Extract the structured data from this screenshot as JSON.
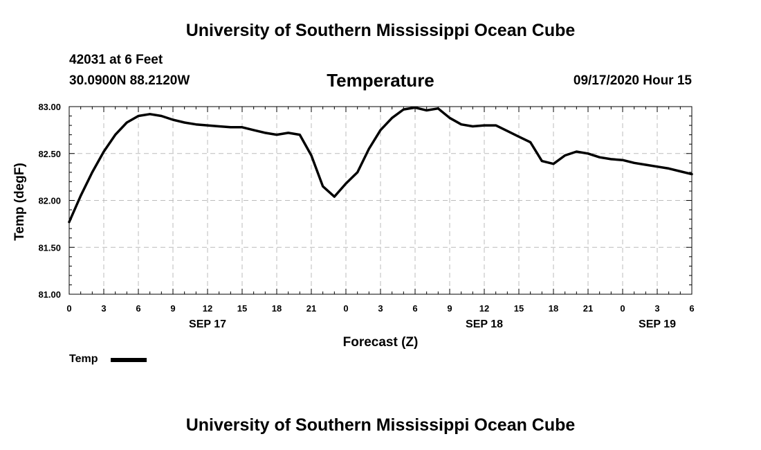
{
  "header": {
    "top_title": "University of Southern Mississippi Ocean Cube",
    "station_depth": "42031 at 6 Feet",
    "coordinates": "30.0900N 88.2120W",
    "timestamp": "09/17/2020 Hour 15",
    "bottom_title": "University of Southern Mississippi Ocean Cube"
  },
  "chart_data": {
    "type": "line",
    "title": "Temperature",
    "xlabel": "Forecast (Z)",
    "ylabel": "Temp (degF)",
    "ylim": [
      81.0,
      83.0
    ],
    "xlim": [
      0,
      54
    ],
    "y_ticks": [
      "81.00",
      "81.50",
      "82.00",
      "82.50",
      "83.00"
    ],
    "y_tick_values": [
      81.0,
      81.5,
      82.0,
      82.5,
      83.0
    ],
    "x_ticks": [
      {
        "hour": 0,
        "label": "0"
      },
      {
        "hour": 3,
        "label": "3"
      },
      {
        "hour": 6,
        "label": "6"
      },
      {
        "hour": 9,
        "label": "9"
      },
      {
        "hour": 12,
        "label": "12"
      },
      {
        "hour": 15,
        "label": "15"
      },
      {
        "hour": 18,
        "label": "18"
      },
      {
        "hour": 21,
        "label": "21"
      },
      {
        "hour": 24,
        "label": "0"
      },
      {
        "hour": 27,
        "label": "3"
      },
      {
        "hour": 30,
        "label": "6"
      },
      {
        "hour": 33,
        "label": "9"
      },
      {
        "hour": 36,
        "label": "12"
      },
      {
        "hour": 39,
        "label": "15"
      },
      {
        "hour": 42,
        "label": "18"
      },
      {
        "hour": 45,
        "label": "21"
      },
      {
        "hour": 48,
        "label": "0"
      },
      {
        "hour": 51,
        "label": "3"
      },
      {
        "hour": 54,
        "label": "6"
      }
    ],
    "date_labels": [
      {
        "hour": 12,
        "label": "SEP 17"
      },
      {
        "hour": 36,
        "label": "SEP 18"
      },
      {
        "hour": 51,
        "label": "SEP 19"
      }
    ],
    "grid": true,
    "legend": {
      "position": "bottom-left",
      "entries": [
        "Temp"
      ]
    },
    "series": [
      {
        "name": "Temp",
        "color": "#000000",
        "x": [
          0,
          1,
          2,
          3,
          4,
          5,
          6,
          7,
          8,
          9,
          10,
          11,
          12,
          13,
          14,
          15,
          16,
          17,
          18,
          19,
          20,
          21,
          22,
          23,
          24,
          25,
          26,
          27,
          28,
          29,
          30,
          31,
          32,
          33,
          34,
          35,
          36,
          37,
          38,
          39,
          40,
          41,
          42,
          43,
          44,
          45,
          46,
          47,
          48,
          49,
          50,
          51,
          52,
          53,
          54
        ],
        "values": [
          81.77,
          82.05,
          82.3,
          82.52,
          82.7,
          82.83,
          82.9,
          82.92,
          82.9,
          82.86,
          82.83,
          82.81,
          82.8,
          82.79,
          82.78,
          82.78,
          82.75,
          82.72,
          82.7,
          82.72,
          82.7,
          82.48,
          82.15,
          82.04,
          82.18,
          82.3,
          82.55,
          82.75,
          82.88,
          82.97,
          82.99,
          82.96,
          82.98,
          82.88,
          82.81,
          82.79,
          82.8,
          82.8,
          82.74,
          82.68,
          82.62,
          82.42,
          82.39,
          82.48,
          82.52,
          82.5,
          82.46,
          82.44,
          82.43,
          82.4,
          82.38,
          82.36,
          82.34,
          82.31,
          82.28
        ]
      }
    ]
  }
}
